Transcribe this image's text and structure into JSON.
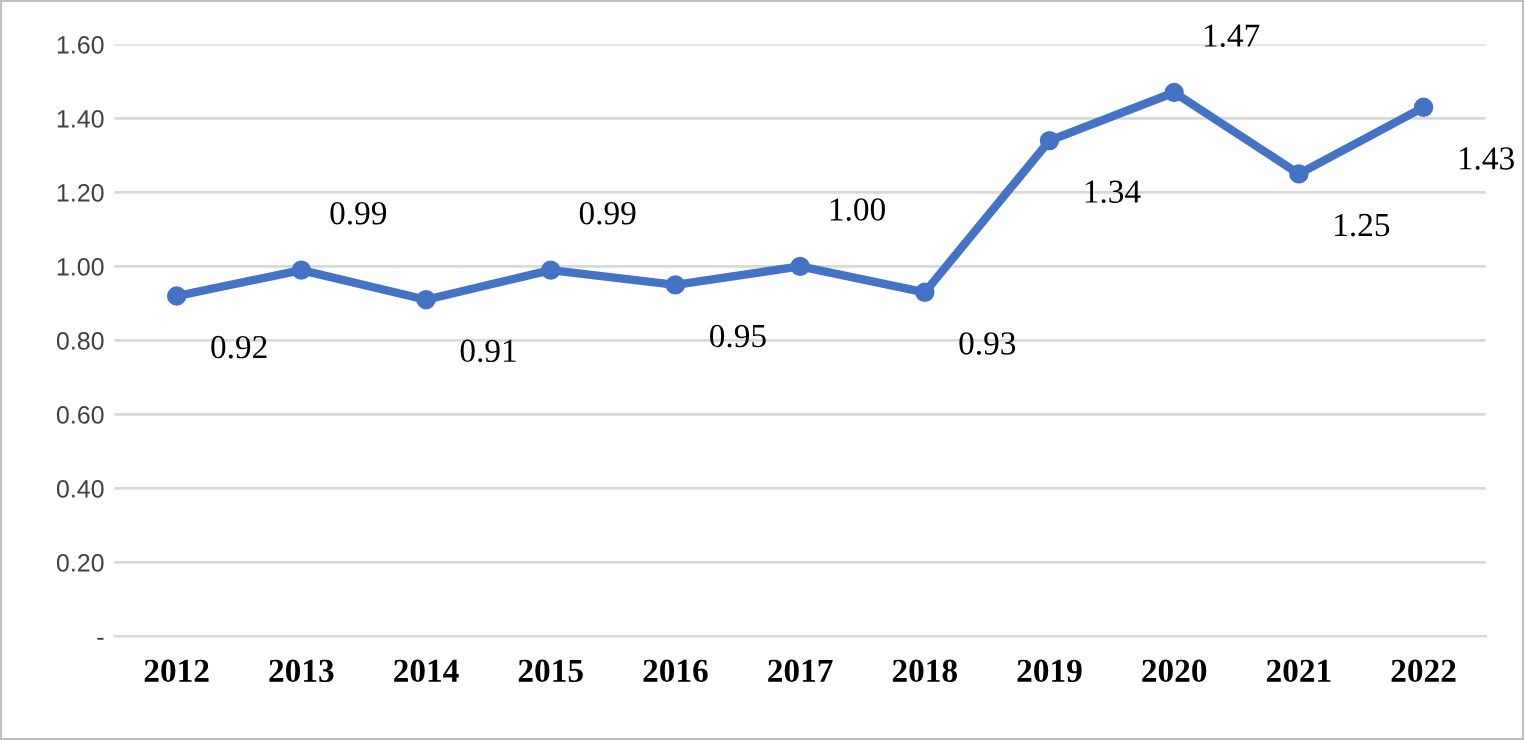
{
  "chart_data": {
    "type": "line",
    "categories": [
      "2012",
      "2013",
      "2014",
      "2015",
      "2016",
      "2017",
      "2018",
      "2019",
      "2020",
      "2021",
      "2022"
    ],
    "series": [
      {
        "color": "#4472c4",
        "values": [
          0.92,
          0.99,
          0.91,
          0.99,
          0.95,
          1.0,
          0.93,
          1.34,
          1.47,
          1.25,
          1.43
        ]
      }
    ],
    "value_labels": [
      "0.92",
      "0.99",
      "0.91",
      "0.99",
      "0.95",
      "1.00",
      "0.93",
      "1.34",
      "1.47",
      "1.25",
      "1.43"
    ],
    "ylim": [
      0,
      1.6
    ],
    "yticks": [
      {
        "value": 0,
        "label": "-"
      },
      {
        "value": 0.2,
        "label": "0.20"
      },
      {
        "value": 0.4,
        "label": "0.40"
      },
      {
        "value": 0.6,
        "label": "0.60"
      },
      {
        "value": 0.8,
        "label": "0.80"
      },
      {
        "value": 1.0,
        "label": "1.00"
      },
      {
        "value": 1.2,
        "label": "1.20"
      },
      {
        "value": 1.4,
        "label": "1.40"
      },
      {
        "value": 1.6,
        "label": "1.60"
      }
    ],
    "grid": "y",
    "marker": "circle",
    "line_style": "solid",
    "legend": false
  }
}
